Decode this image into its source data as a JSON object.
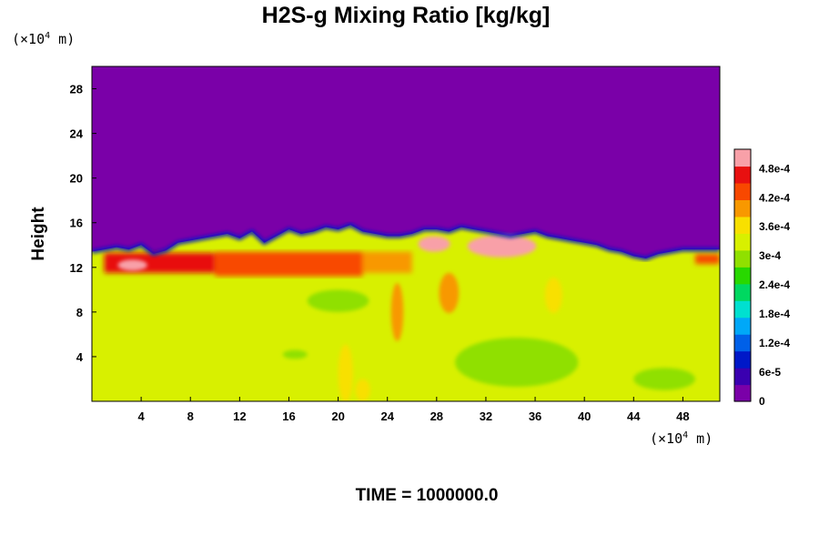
{
  "chart_data": {
    "type": "heatmap",
    "title": "H2S-g Mixing Ratio [kg/kg]",
    "ylabel": "Height",
    "xlabel": "",
    "y_unit": {
      "prefix": "(×10",
      "exp": "4",
      "suffix": " m)"
    },
    "x_unit": {
      "prefix": "(×10",
      "exp": "4",
      "suffix": " m)"
    },
    "xlim": [
      0,
      51
    ],
    "ylim": [
      0,
      30
    ],
    "x_ticks": [
      4,
      8,
      12,
      16,
      20,
      24,
      28,
      32,
      36,
      40,
      44,
      48
    ],
    "y_ticks": [
      4,
      8,
      12,
      16,
      20,
      24,
      28
    ],
    "colorbar": {
      "range": [
        0,
        0.00052
      ],
      "tick_values": [
        0,
        6e-05,
        0.00012,
        0.00018,
        0.00024,
        0.0003,
        0.00036,
        0.00042,
        0.00048
      ],
      "tick_labels": [
        "0",
        "6e-5",
        "1.2e-4",
        "1.8e-4",
        "2.4e-4",
        "3e-4",
        "3.6e-4",
        "4.2e-4",
        "4.8e-4"
      ],
      "colors": [
        "#7a00a8",
        "#3a00b0",
        "#0018c8",
        "#0060e8",
        "#00a8f8",
        "#00e0d0",
        "#00d860",
        "#28d800",
        "#90e000",
        "#d8f000",
        "#f8e000",
        "#f89800",
        "#f84800",
        "#e81010",
        "#f8a0a8"
      ]
    },
    "fields": {
      "background_value": 0.0,
      "lower_value": 0.00034,
      "top_boundary_height": [
        13.4,
        13.6,
        13.8,
        13.6,
        14.0,
        13.2,
        13.5,
        14.2,
        14.4,
        14.6,
        14.8,
        15.0,
        14.6,
        15.2,
        14.2,
        14.8,
        15.4,
        15.0,
        15.2,
        15.6,
        15.4,
        15.8,
        15.2,
        15.0,
        14.8,
        14.8,
        15.0,
        15.4,
        15.4,
        15.2,
        15.6,
        15.4,
        15.2,
        15.0,
        14.8,
        15.0,
        15.2,
        14.8,
        14.6,
        14.4,
        14.2,
        14.0,
        13.6,
        13.4,
        13.0,
        12.8,
        13.2,
        13.4,
        13.6,
        13.6,
        13.6,
        13.6
      ],
      "high_band": [
        {
          "x": [
            1,
            10
          ],
          "y": [
            11.5,
            13.3
          ],
          "value": 0.00046
        },
        {
          "x": [
            10,
            22
          ],
          "y": [
            11.2,
            13.4
          ],
          "value": 0.00044
        },
        {
          "x": [
            22,
            26
          ],
          "y": [
            11.5,
            13.4
          ],
          "value": 0.0004
        },
        {
          "x": [
            49,
            51
          ],
          "y": [
            12.3,
            13.2
          ],
          "value": 0.00044
        }
      ],
      "peak_patches": [
        {
          "cx": 3.3,
          "cy": 12.2,
          "rx": 1.2,
          "ry": 0.5,
          "value": 0.0005
        },
        {
          "cx": 27.8,
          "cy": 14.1,
          "rx": 1.3,
          "ry": 0.7,
          "value": 0.0005
        },
        {
          "cx": 33.3,
          "cy": 13.9,
          "rx": 2.8,
          "ry": 1.0,
          "value": 0.0005
        }
      ],
      "yellow_patches": [
        {
          "cx": 20.6,
          "cy": 2.5,
          "rx": 0.6,
          "ry": 2.6,
          "value": 0.00038
        },
        {
          "cx": 22.0,
          "cy": 1.0,
          "rx": 0.6,
          "ry": 1.0,
          "value": 0.00038
        },
        {
          "cx": 24.8,
          "cy": 8.0,
          "rx": 0.5,
          "ry": 2.6,
          "value": 0.0004
        },
        {
          "cx": 29.0,
          "cy": 9.7,
          "rx": 0.8,
          "ry": 1.8,
          "value": 0.0004
        },
        {
          "cx": 37.5,
          "cy": 9.5,
          "rx": 0.7,
          "ry": 1.6,
          "value": 0.00038
        }
      ],
      "green_patches": [
        {
          "cx": 34.5,
          "cy": 3.5,
          "rx": 5.0,
          "ry": 2.2,
          "value": 0.00031
        },
        {
          "cx": 20.0,
          "cy": 9.0,
          "rx": 2.5,
          "ry": 1.0,
          "value": 0.00031
        },
        {
          "cx": 16.5,
          "cy": 4.2,
          "rx": 1.0,
          "ry": 0.4,
          "value": 0.00031
        },
        {
          "cx": 46.5,
          "cy": 2.0,
          "rx": 2.5,
          "ry": 1.0,
          "value": 0.00031
        }
      ]
    }
  },
  "footer": {
    "time_label": "TIME = 1000000.0"
  }
}
